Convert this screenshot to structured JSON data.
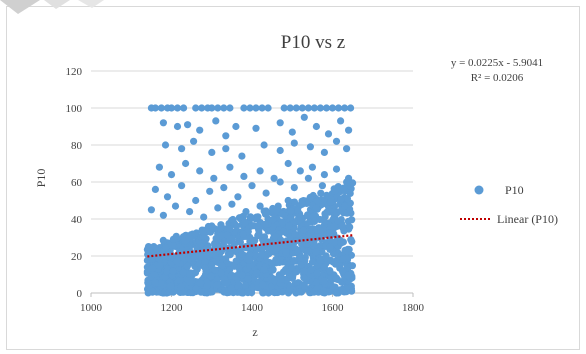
{
  "chart_data": {
    "type": "scatter",
    "title": "P10 vs z",
    "xlabel": "z",
    "ylabel": "P10",
    "xlim": [
      1000,
      1800
    ],
    "ylim": [
      0,
      120
    ],
    "x_ticks": [
      "1000",
      "1200",
      "1400",
      "1600",
      "1800"
    ],
    "y_ticks": [
      "0",
      "20",
      "40",
      "60",
      "80",
      "100",
      "120"
    ],
    "grid": "horizontal",
    "legend_position": "right",
    "series": [
      {
        "name": "P10",
        "color": "#5b9bd5",
        "marker": "circle",
        "x_range": [
          1140,
          1650
        ],
        "points": [
          [
            1150,
            100
          ],
          [
            1160,
            100
          ],
          [
            1175,
            100
          ],
          [
            1190,
            100
          ],
          [
            1200,
            100
          ],
          [
            1215,
            100
          ],
          [
            1230,
            100
          ],
          [
            1260,
            100
          ],
          [
            1275,
            100
          ],
          [
            1290,
            100
          ],
          [
            1300,
            100
          ],
          [
            1315,
            100
          ],
          [
            1330,
            100
          ],
          [
            1345,
            100
          ],
          [
            1380,
            100
          ],
          [
            1395,
            100
          ],
          [
            1410,
            100
          ],
          [
            1425,
            100
          ],
          [
            1440,
            100
          ],
          [
            1480,
            100
          ],
          [
            1495,
            100
          ],
          [
            1510,
            100
          ],
          [
            1525,
            100
          ],
          [
            1540,
            100
          ],
          [
            1555,
            100
          ],
          [
            1570,
            100
          ],
          [
            1585,
            100
          ],
          [
            1600,
            100
          ],
          [
            1615,
            100
          ],
          [
            1630,
            100
          ],
          [
            1645,
            100
          ],
          [
            1180,
            92
          ],
          [
            1215,
            90
          ],
          [
            1240,
            91
          ],
          [
            1270,
            88
          ],
          [
            1310,
            93
          ],
          [
            1335,
            85
          ],
          [
            1360,
            90
          ],
          [
            1410,
            89
          ],
          [
            1470,
            92
          ],
          [
            1500,
            87
          ],
          [
            1530,
            95
          ],
          [
            1560,
            90
          ],
          [
            1590,
            86
          ],
          [
            1620,
            93
          ],
          [
            1640,
            88
          ],
          [
            1185,
            80
          ],
          [
            1225,
            78
          ],
          [
            1255,
            82
          ],
          [
            1300,
            76
          ],
          [
            1335,
            78
          ],
          [
            1375,
            74
          ],
          [
            1430,
            80
          ],
          [
            1470,
            77
          ],
          [
            1505,
            81
          ],
          [
            1545,
            79
          ],
          [
            1580,
            76
          ],
          [
            1610,
            82
          ],
          [
            1635,
            78
          ],
          [
            1170,
            68
          ],
          [
            1200,
            64
          ],
          [
            1235,
            70
          ],
          [
            1270,
            66
          ],
          [
            1305,
            62
          ],
          [
            1345,
            68
          ],
          [
            1380,
            63
          ],
          [
            1420,
            66
          ],
          [
            1455,
            62
          ],
          [
            1490,
            70
          ],
          [
            1520,
            66
          ],
          [
            1550,
            68
          ],
          [
            1580,
            64
          ],
          [
            1610,
            67
          ],
          [
            1640,
            62
          ],
          [
            1160,
            56
          ],
          [
            1190,
            52
          ],
          [
            1225,
            58
          ],
          [
            1260,
            50
          ],
          [
            1295,
            55
          ],
          [
            1330,
            57
          ],
          [
            1365,
            52
          ],
          [
            1400,
            58
          ],
          [
            1435,
            54
          ],
          [
            1470,
            60
          ],
          [
            1505,
            57
          ],
          [
            1540,
            62
          ],
          [
            1575,
            58
          ],
          [
            1605,
            55
          ],
          [
            1635,
            60
          ],
          [
            1150,
            45
          ],
          [
            1180,
            42
          ],
          [
            1210,
            47
          ],
          [
            1245,
            44
          ],
          [
            1280,
            41
          ],
          [
            1315,
            46
          ],
          [
            1350,
            48
          ],
          [
            1385,
            44
          ],
          [
            1420,
            47
          ],
          [
            1455,
            45
          ],
          [
            1490,
            50
          ],
          [
            1525,
            48
          ],
          [
            1560,
            46
          ],
          [
            1595,
            49
          ],
          [
            1630,
            47
          ]
        ]
      },
      {
        "name": "Linear (P10)",
        "color": "#c00000",
        "style": "dotted",
        "trendline": {
          "slope": 0.0225,
          "intercept": -5.9041,
          "x_from": 1140,
          "x_to": 1650
        }
      }
    ],
    "equation": "y = 0.0225x - 5.9041",
    "r_squared": "R² = 0.0206"
  },
  "colors": {
    "marker": "#5b9bd5",
    "trendline": "#c00000",
    "gridline": "#d9d9d9",
    "text": "#404040"
  }
}
